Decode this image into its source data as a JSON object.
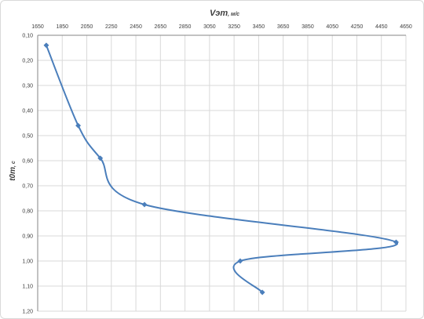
{
  "chart_data": {
    "type": "line",
    "title": "",
    "xlabel_main": "Vэт",
    "xlabel_unit": ", м/с",
    "ylabel_main": "t0т",
    "ylabel_unit": ", с",
    "x_axis_position": "top",
    "y_axis_inverted": true,
    "xlim": [
      1650,
      4650
    ],
    "ylim": [
      0.1,
      1.2
    ],
    "x_ticks": [
      "1650",
      "1850",
      "2050",
      "2250",
      "2450",
      "2650",
      "2850",
      "3050",
      "3250",
      "3450",
      "3650",
      "3850",
      "4050",
      "4250",
      "4450",
      "4650"
    ],
    "y_ticks": [
      "0,10",
      "0,20",
      "0,30",
      "0,40",
      "0,50",
      "0,60",
      "0,70",
      "0,80",
      "0,90",
      "1,00",
      "1,10",
      "1,20"
    ],
    "grid": true,
    "smooth": true,
    "series": [
      {
        "color": "#4a7ebb",
        "marker": "diamond",
        "points": [
          {
            "x": 1720,
            "y": 0.14
          },
          {
            "x": 1980,
            "y": 0.46
          },
          {
            "x": 2160,
            "y": 0.59
          },
          {
            "x": 2520,
            "y": 0.775
          },
          {
            "x": 4570,
            "y": 0.925
          },
          {
            "x": 3300,
            "y": 1.0
          },
          {
            "x": 3480,
            "y": 1.125
          }
        ]
      }
    ]
  }
}
